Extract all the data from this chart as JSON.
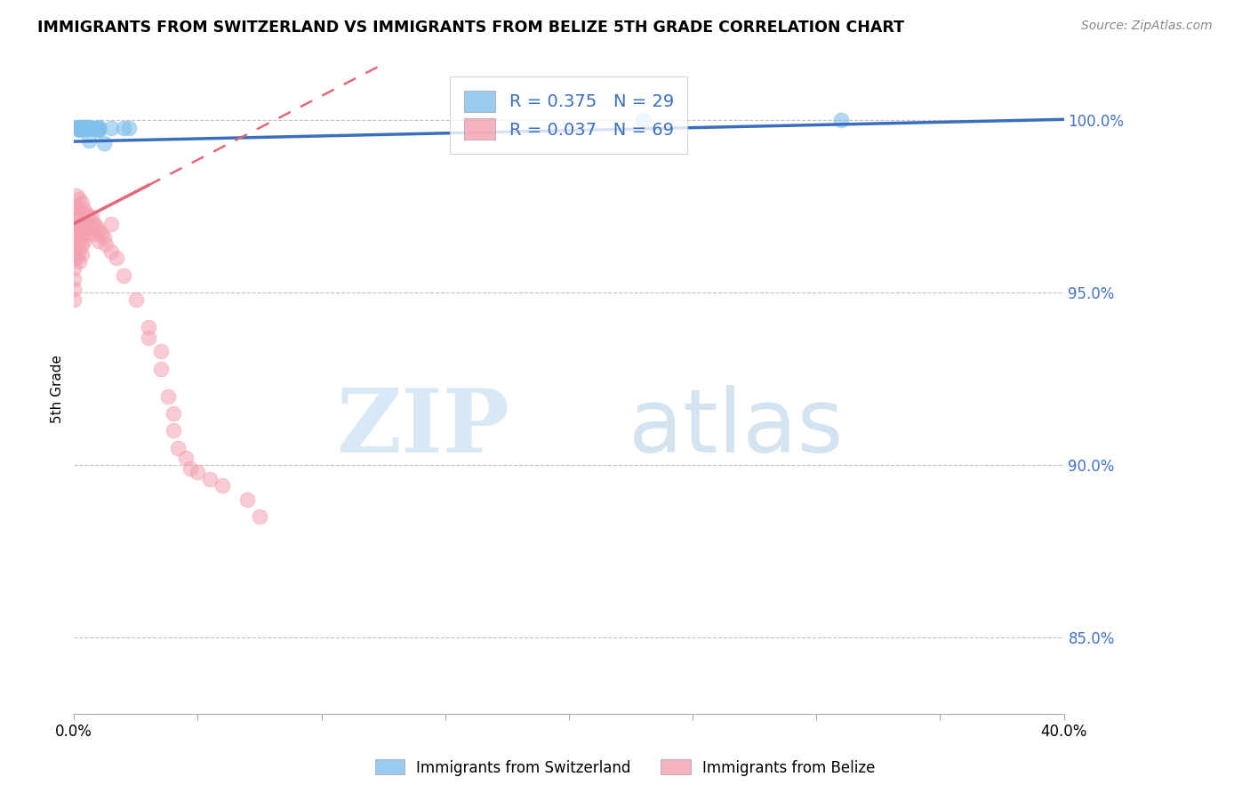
{
  "title": "IMMIGRANTS FROM SWITZERLAND VS IMMIGRANTS FROM BELIZE 5TH GRADE CORRELATION CHART",
  "source": "Source: ZipAtlas.com",
  "ylabel": "5th Grade",
  "xmin": 0.0,
  "xmax": 0.4,
  "ymin": 0.828,
  "ymax": 1.016,
  "yticks_vals": [
    0.85,
    0.9,
    0.95,
    1.0
  ],
  "ytick_labels": [
    "85.0%",
    "90.0%",
    "95.0%",
    "100.0%"
  ],
  "r_swiss": 0.375,
  "n_swiss": 29,
  "r_belize": 0.037,
  "n_belize": 69,
  "swiss_color": "#7fbfec",
  "belize_color": "#f4a0b0",
  "trendline_swiss_color": "#3a6fbf",
  "trendline_belize_color": "#e06878",
  "swiss_x": [
    0.0,
    0.001,
    0.002,
    0.002,
    0.002,
    0.002,
    0.003,
    0.003,
    0.003,
    0.004,
    0.004,
    0.005,
    0.005,
    0.006,
    0.006,
    0.006,
    0.007,
    0.008,
    0.009,
    0.01,
    0.01,
    0.01,
    0.01,
    0.012,
    0.015,
    0.02,
    0.022,
    0.23,
    0.31
  ],
  "swiss_y": [
    0.998,
    0.9978,
    0.998,
    0.9978,
    0.9975,
    0.9972,
    0.998,
    0.9978,
    0.9975,
    0.998,
    0.9975,
    0.998,
    0.9975,
    0.998,
    0.9978,
    0.9942,
    0.9978,
    0.9978,
    0.9975,
    0.998,
    0.9978,
    0.9975,
    0.9972,
    0.9932,
    0.9978,
    0.9978,
    0.9978,
    1.0,
    1.0
  ],
  "belize_x": [
    0.0,
    0.0,
    0.0,
    0.0,
    0.0,
    0.0,
    0.0,
    0.0,
    0.0,
    0.0,
    0.001,
    0.001,
    0.001,
    0.001,
    0.001,
    0.001,
    0.001,
    0.002,
    0.002,
    0.002,
    0.002,
    0.002,
    0.002,
    0.002,
    0.003,
    0.003,
    0.003,
    0.003,
    0.003,
    0.003,
    0.004,
    0.004,
    0.004,
    0.004,
    0.005,
    0.005,
    0.005,
    0.006,
    0.006,
    0.007,
    0.007,
    0.008,
    0.008,
    0.009,
    0.01,
    0.01,
    0.011,
    0.012,
    0.013,
    0.015,
    0.015,
    0.017,
    0.02,
    0.025,
    0.03,
    0.03,
    0.035,
    0.035,
    0.038,
    0.04,
    0.04,
    0.042,
    0.045,
    0.047,
    0.05,
    0.055,
    0.06,
    0.07,
    0.075
  ],
  "belize_y": [
    0.975,
    0.972,
    0.969,
    0.966,
    0.963,
    0.96,
    0.957,
    0.954,
    0.951,
    0.948,
    0.978,
    0.975,
    0.972,
    0.969,
    0.966,
    0.963,
    0.96,
    0.977,
    0.974,
    0.971,
    0.968,
    0.965,
    0.962,
    0.959,
    0.976,
    0.973,
    0.97,
    0.967,
    0.964,
    0.961,
    0.974,
    0.971,
    0.968,
    0.965,
    0.973,
    0.97,
    0.967,
    0.972,
    0.969,
    0.972,
    0.969,
    0.97,
    0.967,
    0.969,
    0.968,
    0.965,
    0.967,
    0.966,
    0.964,
    0.97,
    0.962,
    0.96,
    0.955,
    0.948,
    0.94,
    0.937,
    0.933,
    0.928,
    0.92,
    0.915,
    0.91,
    0.905,
    0.902,
    0.899,
    0.898,
    0.896,
    0.894,
    0.89,
    0.885
  ],
  "swiss_trend_x0": 0.0,
  "swiss_trend_x1": 0.4,
  "swiss_trend_y0": 0.9938,
  "swiss_trend_y1": 1.0002,
  "belize_trend_solid_x0": 0.0,
  "belize_trend_solid_x1": 0.03,
  "belize_trend_y0": 0.97,
  "belize_trend_slope": 0.37,
  "belize_trend_dashed_x0": 0.0,
  "belize_trend_dashed_x1": 0.4
}
